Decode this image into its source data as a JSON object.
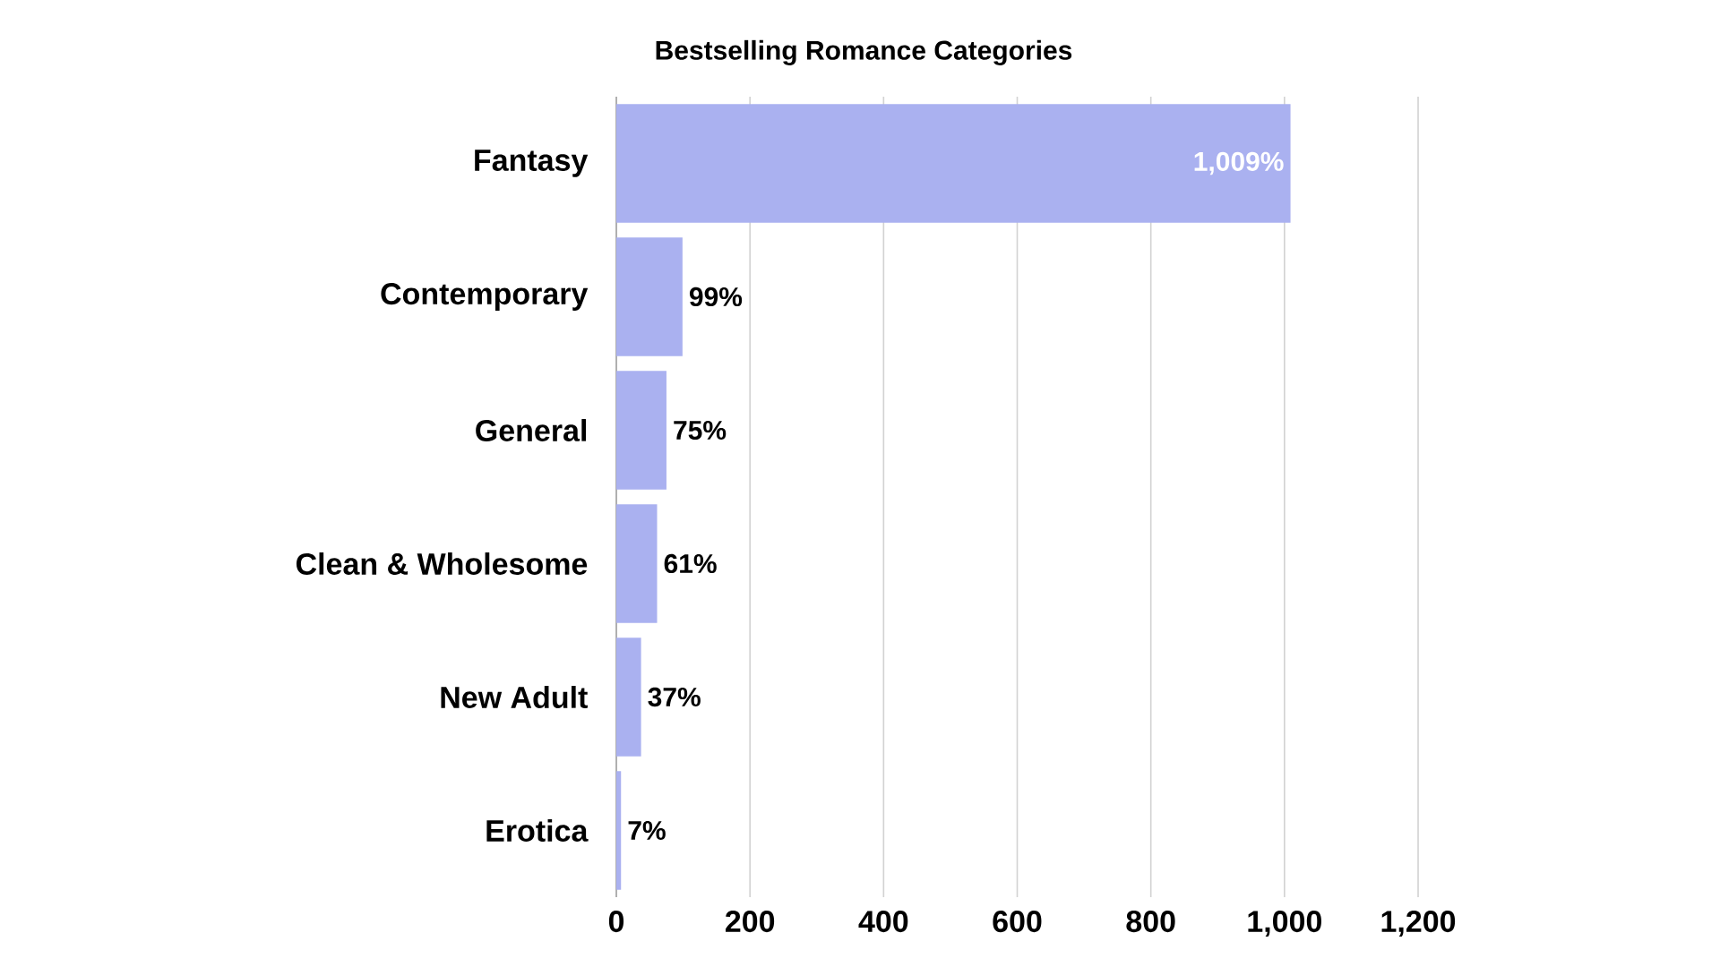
{
  "chart_data": {
    "type": "bar",
    "orientation": "horizontal",
    "title": "Bestselling Romance Categories",
    "categories": [
      "Fantasy",
      "Contemporary",
      "General",
      "Clean & Wholesome",
      "New Adult",
      "Erotica"
    ],
    "values": [
      1009,
      99,
      75,
      61,
      37,
      7
    ],
    "value_labels": [
      "1,009%",
      "99%",
      "75%",
      "61%",
      "37%",
      "7%"
    ],
    "color": "#aab1f0",
    "xlim": [
      0,
      1200
    ],
    "xticks": [
      0,
      200,
      400,
      600,
      800,
      {
        "value": 1000,
        "label": "1,000"
      },
      {
        "value": 1200,
        "label": "1,200"
      }
    ],
    "grid": "x"
  }
}
